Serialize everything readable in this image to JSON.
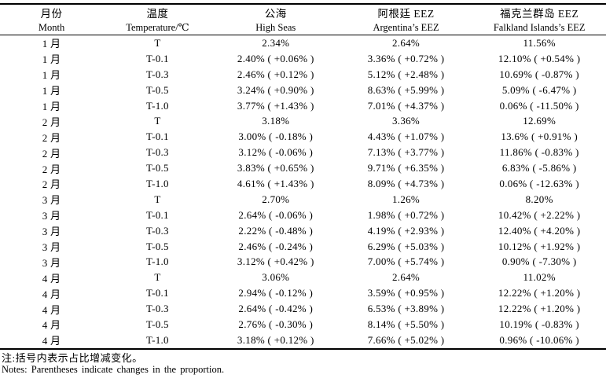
{
  "table": {
    "columns": [
      {
        "zh": "月份",
        "en": "Month"
      },
      {
        "zh": "温度",
        "en": "Temperature/℃"
      },
      {
        "zh": "公海",
        "en": "High Seas"
      },
      {
        "zh": "阿根廷 EEZ",
        "en": "Argentina’s EEZ"
      },
      {
        "zh": "福克兰群岛 EEZ",
        "en": "Falkland Islands’s EEZ"
      }
    ],
    "rows": [
      [
        "1 月",
        "T",
        "2.34%",
        "2.64%",
        "11.56%"
      ],
      [
        "1 月",
        "T-0.1",
        "2.40% ( +0.06% )",
        "3.36% ( +0.72% )",
        "12.10% ( +0.54% )"
      ],
      [
        "1 月",
        "T-0.3",
        "2.46% ( +0.12% )",
        "5.12% ( +2.48% )",
        "10.69% ( -0.87% )"
      ],
      [
        "1 月",
        "T-0.5",
        "3.24% ( +0.90% )",
        "8.63% ( +5.99% )",
        "5.09% ( -6.47% )"
      ],
      [
        "1 月",
        "T-1.0",
        "3.77% ( +1.43% )",
        "7.01% ( +4.37% )",
        "0.06% ( -11.50% )"
      ],
      [
        "2 月",
        "T",
        "3.18%",
        "3.36%",
        "12.69%"
      ],
      [
        "2 月",
        "T-0.1",
        "3.00% ( -0.18% )",
        "4.43% ( +1.07% )",
        "13.6% ( +0.91% )"
      ],
      [
        "2 月",
        "T-0.3",
        "3.12% ( -0.06% )",
        "7.13% ( +3.77% )",
        "11.86% ( -0.83% )"
      ],
      [
        "2 月",
        "T-0.5",
        "3.83% ( +0.65% )",
        "9.71% ( +6.35% )",
        "6.83% ( -5.86% )"
      ],
      [
        "2 月",
        "T-1.0",
        "4.61% ( +1.43% )",
        "8.09% ( +4.73% )",
        "0.06% ( -12.63% )"
      ],
      [
        "3 月",
        "T",
        "2.70%",
        "1.26%",
        "8.20%"
      ],
      [
        "3 月",
        "T-0.1",
        "2.64% ( -0.06% )",
        "1.98% ( +0.72% )",
        "10.42% ( +2.22% )"
      ],
      [
        "3 月",
        "T-0.3",
        "2.22% ( -0.48% )",
        "4.19% ( +2.93% )",
        "12.40% ( +4.20% )"
      ],
      [
        "3 月",
        "T-0.5",
        "2.46% ( -0.24% )",
        "6.29% ( +5.03% )",
        "10.12% ( +1.92% )"
      ],
      [
        "3 月",
        "T-1.0",
        "3.12% ( +0.42% )",
        "7.00% ( +5.74% )",
        "0.90% ( -7.30% )"
      ],
      [
        "4 月",
        "T",
        "3.06%",
        "2.64%",
        "11.02%"
      ],
      [
        "4 月",
        "T-0.1",
        "2.94% ( -0.12% )",
        "3.59% ( +0.95% )",
        "12.22% ( +1.20% )"
      ],
      [
        "4 月",
        "T-0.3",
        "2.64% ( -0.42% )",
        "6.53% ( +3.89% )",
        "12.22% ( +1.20% )"
      ],
      [
        "4 月",
        "T-0.5",
        "2.76% ( -0.30% )",
        "8.14% ( +5.50% )",
        "10.19% ( -0.83% )"
      ],
      [
        "4 月",
        "T-1.0",
        "3.18% ( +0.12% )",
        "7.66% ( +5.02% )",
        "0.96% ( -10.06% )"
      ]
    ]
  },
  "notes": {
    "zh": "注:括号内表示占比增减变化。",
    "en": "Notes: Parentheses indicate changes in the proportion."
  },
  "colors": {
    "text": "#000000",
    "background": "#ffffff",
    "rule": "#000000"
  }
}
